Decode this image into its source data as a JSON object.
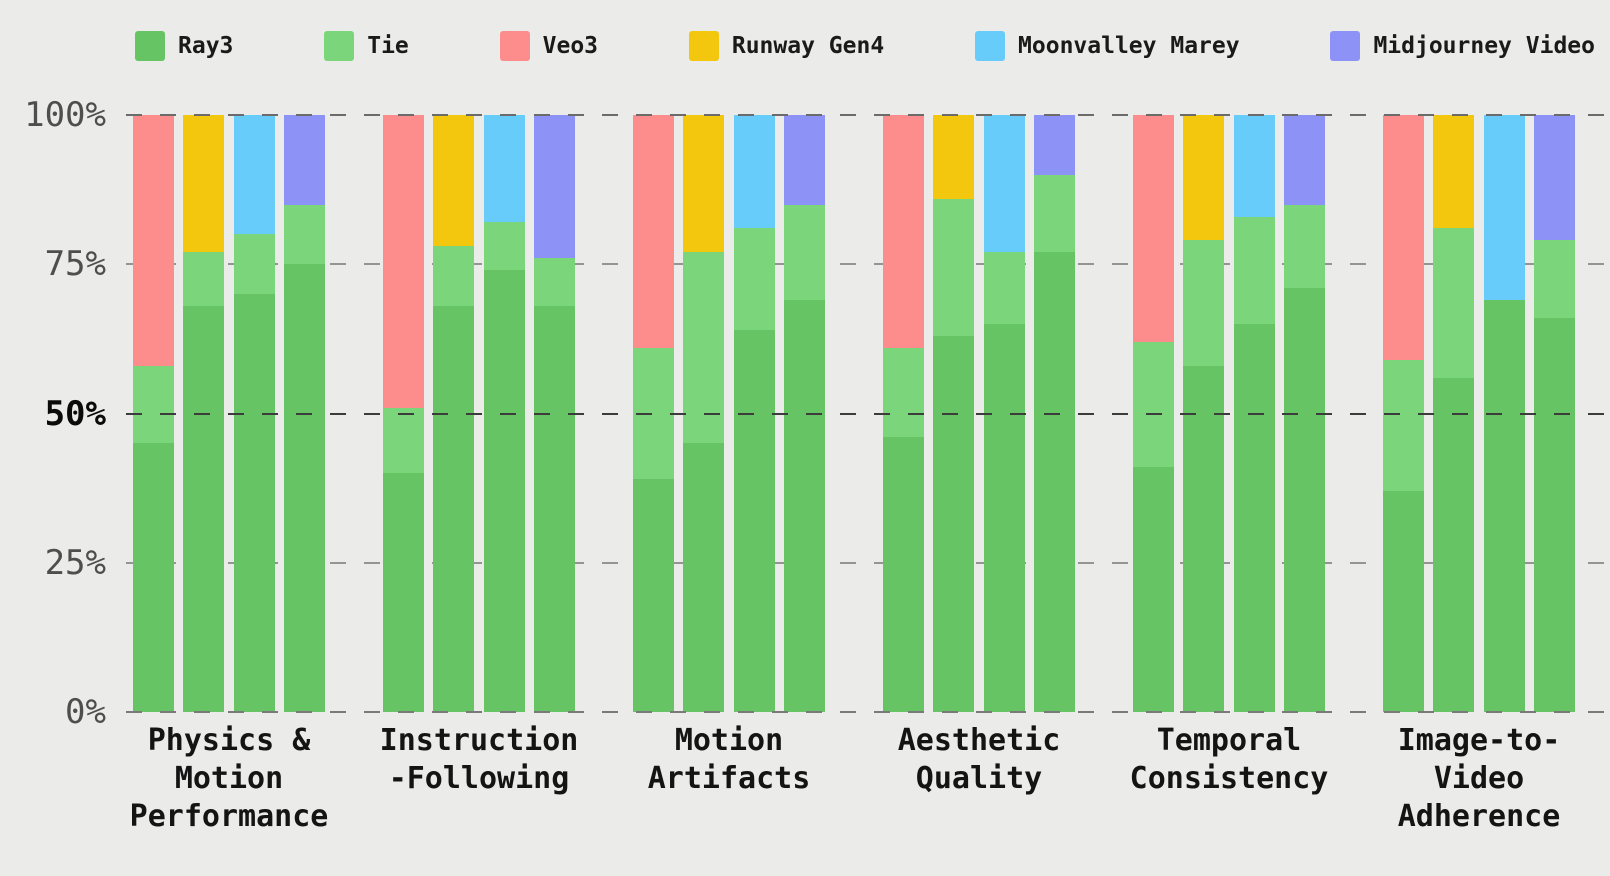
{
  "legend": [
    {
      "label": "Ray3",
      "color": "#66C464"
    },
    {
      "label": "Tie",
      "color": "#7BD67B"
    },
    {
      "label": "Veo3",
      "color": "#FD8D8D"
    },
    {
      "label": "Runway Gen4",
      "color": "#F4C70F"
    },
    {
      "label": "Moonvalley Marey",
      "color": "#68CCFA"
    },
    {
      "label": "Midjourney Video",
      "color": "#8D92F7"
    }
  ],
  "y_axis": {
    "ticks": [
      {
        "label": "100%",
        "value": 100,
        "emphasis": false
      },
      {
        "label": "75%",
        "value": 75,
        "emphasis": false
      },
      {
        "label": "50%",
        "value": 50,
        "emphasis": true
      },
      {
        "label": "25%",
        "value": 25,
        "emphasis": false
      },
      {
        "label": "0%",
        "value": 0,
        "emphasis": false
      }
    ]
  },
  "chart_data": {
    "type": "bar",
    "stacked": true,
    "unit": "percent",
    "ylim": [
      0,
      100
    ],
    "yticks": [
      0,
      25,
      50,
      75,
      100
    ],
    "grid": "dashed",
    "legend_position": "top",
    "stack_order": [
      "Ray3 (win)",
      "Tie",
      "Competitor (win)"
    ],
    "comparisons": [
      "Veo3",
      "Runway Gen4",
      "Moonvalley Marey",
      "Midjourney Video"
    ],
    "categories": [
      "Physics & Motion Performance",
      "Instruction-Following",
      "Motion Artifacts",
      "Aesthetic Quality",
      "Temporal Consistency",
      "Image-to-Video Adherence"
    ],
    "groups": [
      {
        "label": "Physics & Motion Performance",
        "label_display": "Physics &\nMotion\nPerformance",
        "bars": [
          {
            "vs": "Veo3",
            "ray3": 45,
            "tie": 13,
            "competitor": 42
          },
          {
            "vs": "Runway Gen4",
            "ray3": 68,
            "tie": 9,
            "competitor": 23
          },
          {
            "vs": "Moonvalley Marey",
            "ray3": 70,
            "tie": 10,
            "competitor": 20
          },
          {
            "vs": "Midjourney Video",
            "ray3": 75,
            "tie": 10,
            "competitor": 15
          }
        ]
      },
      {
        "label": "Instruction-Following",
        "label_display": "Instruction\n-Following",
        "bars": [
          {
            "vs": "Veo3",
            "ray3": 40,
            "tie": 11,
            "competitor": 49
          },
          {
            "vs": "Runway Gen4",
            "ray3": 68,
            "tie": 10,
            "competitor": 22
          },
          {
            "vs": "Moonvalley Marey",
            "ray3": 74,
            "tie": 8,
            "competitor": 18
          },
          {
            "vs": "Midjourney Video",
            "ray3": 68,
            "tie": 8,
            "competitor": 24
          }
        ]
      },
      {
        "label": "Motion Artifacts",
        "label_display": "Motion\nArtifacts",
        "bars": [
          {
            "vs": "Veo3",
            "ray3": 39,
            "tie": 22,
            "competitor": 39
          },
          {
            "vs": "Runway Gen4",
            "ray3": 45,
            "tie": 32,
            "competitor": 23
          },
          {
            "vs": "Moonvalley Marey",
            "ray3": 64,
            "tie": 17,
            "competitor": 19
          },
          {
            "vs": "Midjourney Video",
            "ray3": 69,
            "tie": 16,
            "competitor": 15
          }
        ]
      },
      {
        "label": "Aesthetic Quality",
        "label_display": "Aesthetic\nQuality",
        "bars": [
          {
            "vs": "Veo3",
            "ray3": 46,
            "tie": 15,
            "competitor": 39
          },
          {
            "vs": "Runway Gen4",
            "ray3": 63,
            "tie": 23,
            "competitor": 14
          },
          {
            "vs": "Moonvalley Marey",
            "ray3": 65,
            "tie": 12,
            "competitor": 23
          },
          {
            "vs": "Midjourney Video",
            "ray3": 77,
            "tie": 13,
            "competitor": 10
          }
        ]
      },
      {
        "label": "Temporal Consistency",
        "label_display": "Temporal\nConsistency",
        "bars": [
          {
            "vs": "Veo3",
            "ray3": 41,
            "tie": 21,
            "competitor": 38
          },
          {
            "vs": "Runway Gen4",
            "ray3": 58,
            "tie": 21,
            "competitor": 21
          },
          {
            "vs": "Moonvalley Marey",
            "ray3": 65,
            "tie": 18,
            "competitor": 17
          },
          {
            "vs": "Midjourney Video",
            "ray3": 71,
            "tie": 14,
            "competitor": 15
          }
        ]
      },
      {
        "label": "Image-to-Video Adherence",
        "label_display": "Image-to-\nVideo\nAdherence",
        "bars": [
          {
            "vs": "Veo3",
            "ray3": 37,
            "tie": 22,
            "competitor": 41
          },
          {
            "vs": "Runway Gen4",
            "ray3": 56,
            "tie": 25,
            "competitor": 19
          },
          {
            "vs": "Moonvalley Marey",
            "ray3": 69,
            "tie": 0,
            "competitor": 31
          },
          {
            "vs": "Midjourney Video",
            "ray3": 66,
            "tie": 13,
            "competitor": 21
          }
        ]
      }
    ]
  }
}
